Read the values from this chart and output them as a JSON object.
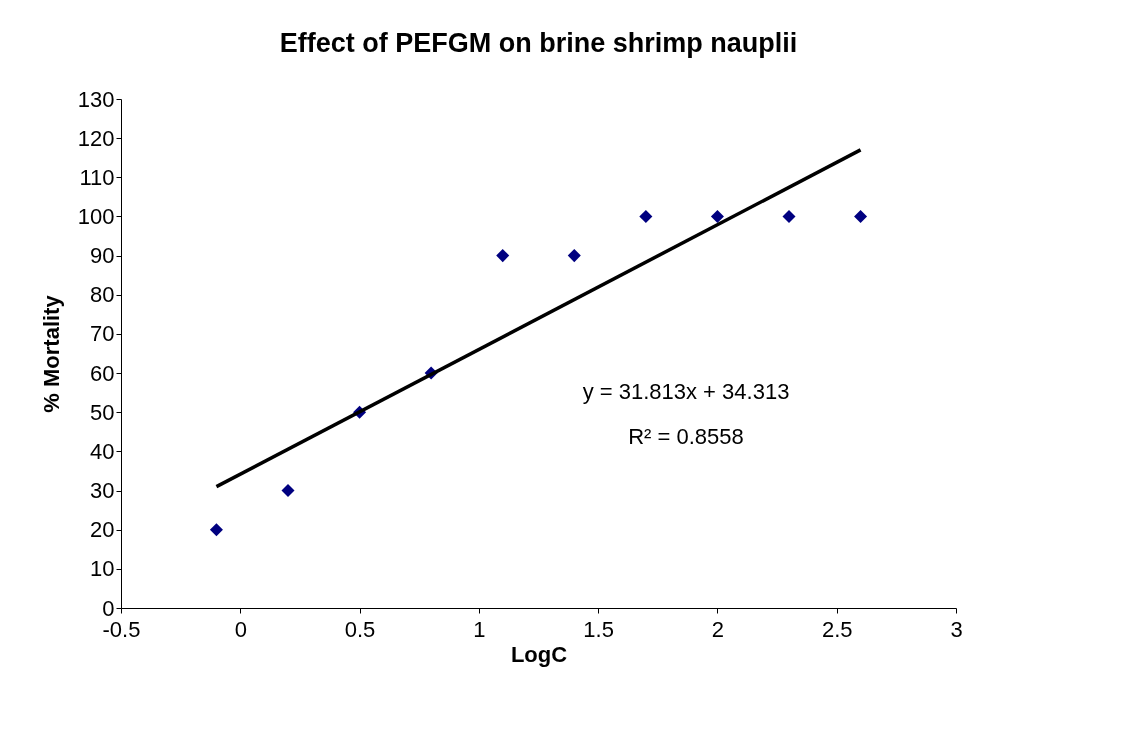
{
  "chart_data": {
    "type": "scatter",
    "title": "Effect of PEFGM on brine shrimp nauplii",
    "xlabel": "LogC",
    "ylabel": "% Mortality",
    "series": [
      {
        "color": "#000080",
        "x": [
          -0.1,
          0.2,
          0.5,
          0.8,
          1.1,
          1.4,
          1.7,
          2.0,
          2.3,
          2.6
        ],
        "values": [
          20,
          30,
          50,
          60,
          90,
          90,
          100,
          100,
          100,
          100
        ]
      },
      {
        "type": "line",
        "color": "#000000",
        "marker": "none",
        "x": [
          -0.1,
          2.6
        ],
        "values": [
          31,
          117
        ]
      }
    ],
    "marker": "diamond",
    "grid": false,
    "legend": false,
    "xlim": [
      -0.5,
      3
    ],
    "xticks": [
      -0.5,
      0,
      0.5,
      1,
      1.5,
      2,
      2.5,
      3
    ],
    "ylim": [
      0,
      130
    ],
    "yticks": [
      0,
      10,
      20,
      30,
      40,
      50,
      60,
      70,
      80,
      90,
      100,
      110,
      120,
      130
    ],
    "annotations": [
      "y = 31.813x + 34.313",
      "R² = 0.8558"
    ]
  }
}
